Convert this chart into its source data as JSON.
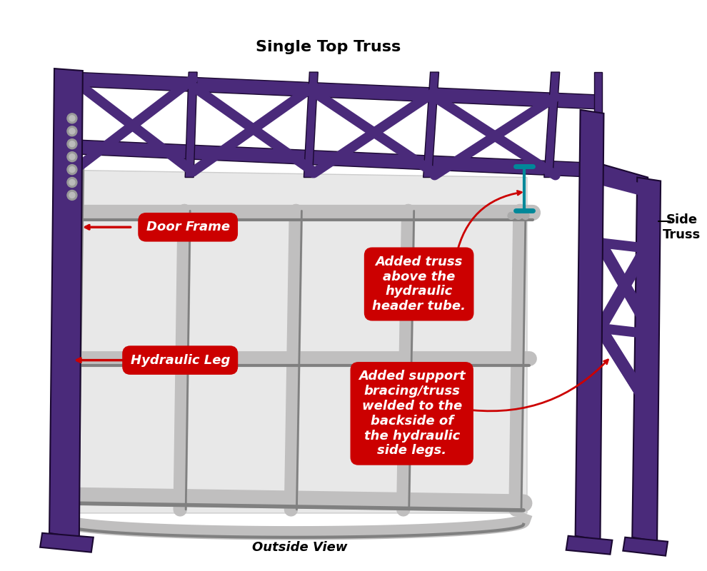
{
  "title": "Single Top Truss",
  "subtitle": "Outside View",
  "side_truss_label": "Side\nTruss",
  "label_door_frame": "Door Frame",
  "label_hydraulic_leg": "Hydraulic Leg",
  "label_added_truss": "Added truss\nabove the\nhydraulic\nheader tube.",
  "label_added_support": "Added support\nbracing/truss\nwelded to the\nbackside of\nthe hydraulic\nside legs.",
  "bg_color": "#ffffff",
  "purple_color": "#4a2a7a",
  "steel_color": "#c0bfbf",
  "steel_dark": "#808080",
  "red_color": "#cc0000",
  "white_color": "#ffffff",
  "cyan_color": "#008899",
  "annotation_font_size": 11,
  "label_font_size": 13
}
